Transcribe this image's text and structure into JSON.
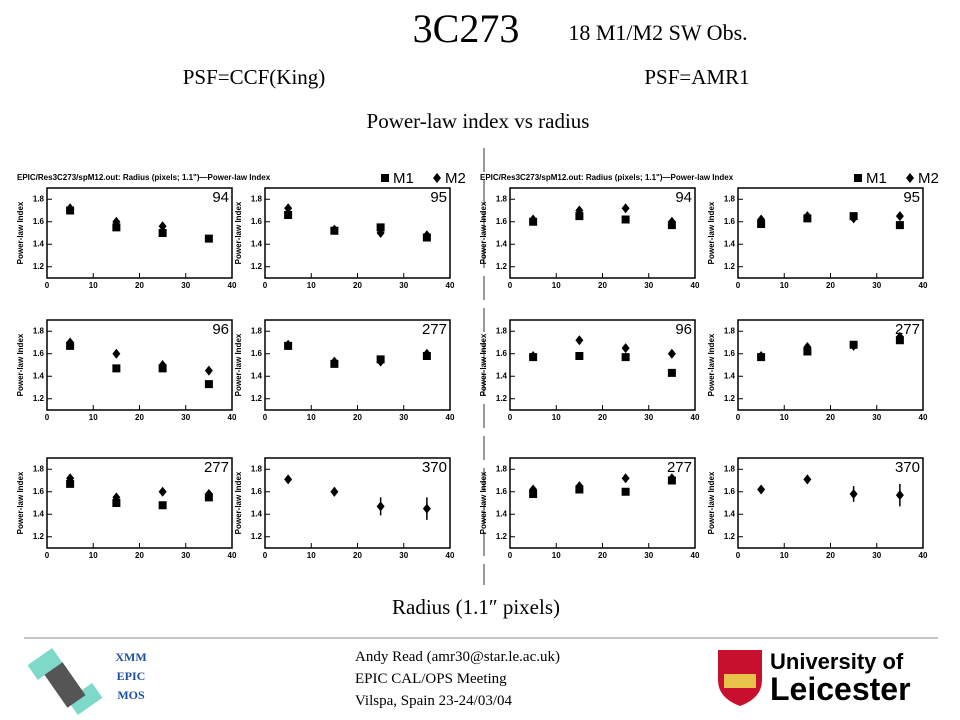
{
  "slide": {
    "title": "3C273",
    "subtitle": "18 M1/M2 SW Obs.",
    "left_label": "PSF=CCF(King)",
    "right_label": "PSF=AMR1",
    "heading": "Power-law index vs radius",
    "x_caption": "Radius (1.1″ pixels)"
  },
  "panel_headers": [
    "EPIC/Res3C273/spM12.out: Radius (pixels; 1.1\")—Power-law Index",
    "EPIC/Res3C273/spM12.out: Radius (pixels; 1.1\")—Power-law Index"
  ],
  "chart_data": [
    {
      "type": "scatter",
      "annotation": "94",
      "ylabel": "Power-law Index",
      "x": [
        5,
        15,
        25,
        35
      ],
      "xlim": [
        0,
        40
      ],
      "xticks": [
        0,
        10,
        20,
        30,
        40
      ],
      "ylim": [
        1.1,
        1.9
      ],
      "yticks": [
        1.2,
        1.4,
        1.6,
        1.8
      ],
      "series": [
        {
          "name": "M1",
          "marker": "square",
          "color": "#000000",
          "values": [
            1.7,
            1.55,
            1.5,
            1.45
          ]
        },
        {
          "name": "M2",
          "marker": "diamond",
          "color": "#000000",
          "values": [
            1.72,
            1.6,
            1.56,
            null
          ]
        }
      ]
    },
    {
      "type": "scatter",
      "annotation": "95",
      "ylabel": "Power-law Index",
      "legend": true,
      "x": [
        5,
        15,
        25,
        35
      ],
      "xlim": [
        0,
        40
      ],
      "xticks": [
        0,
        10,
        20,
        30,
        40
      ],
      "ylim": [
        1.1,
        1.9
      ],
      "yticks": [
        1.2,
        1.4,
        1.6,
        1.8
      ],
      "series": [
        {
          "name": "M1",
          "marker": "square",
          "color": "#000000",
          "values": [
            1.66,
            1.52,
            1.55,
            1.46
          ]
        },
        {
          "name": "M2",
          "marker": "diamond",
          "color": "#000000",
          "values": [
            1.72,
            1.53,
            1.5,
            1.48
          ]
        }
      ]
    },
    {
      "type": "scatter",
      "annotation": "96",
      "ylabel": "Power-law Index",
      "x": [
        5,
        15,
        25,
        35
      ],
      "xlim": [
        0,
        40
      ],
      "xticks": [
        0,
        10,
        20,
        30,
        40
      ],
      "ylim": [
        1.1,
        1.9
      ],
      "yticks": [
        1.2,
        1.4,
        1.6,
        1.8
      ],
      "series": [
        {
          "name": "M1",
          "marker": "square",
          "color": "#000000",
          "values": [
            1.67,
            1.47,
            1.47,
            1.33
          ]
        },
        {
          "name": "M2",
          "marker": "diamond",
          "color": "#000000",
          "values": [
            1.7,
            1.6,
            1.5,
            1.45
          ]
        }
      ]
    },
    {
      "type": "scatter",
      "annotation": "277",
      "ylabel": "Power-law Index",
      "x": [
        5,
        15,
        25,
        35
      ],
      "xlim": [
        0,
        40
      ],
      "xticks": [
        0,
        10,
        20,
        30,
        40
      ],
      "ylim": [
        1.1,
        1.9
      ],
      "yticks": [
        1.2,
        1.4,
        1.6,
        1.8
      ],
      "series": [
        {
          "name": "M1",
          "marker": "square",
          "color": "#000000",
          "values": [
            1.67,
            1.51,
            1.55,
            1.58
          ]
        },
        {
          "name": "M2",
          "marker": "diamond",
          "color": "#000000",
          "values": [
            1.68,
            1.53,
            1.53,
            1.6
          ]
        }
      ]
    },
    {
      "type": "scatter",
      "annotation": "277",
      "ylabel": "Power-law Index",
      "x": [
        5,
        15,
        25,
        35
      ],
      "xlim": [
        0,
        40
      ],
      "xticks": [
        0,
        10,
        20,
        30,
        40
      ],
      "ylim": [
        1.1,
        1.9
      ],
      "yticks": [
        1.2,
        1.4,
        1.6,
        1.8
      ],
      "series": [
        {
          "name": "M1",
          "marker": "square",
          "color": "#000000",
          "values": [
            1.67,
            1.5,
            1.48,
            1.55
          ]
        },
        {
          "name": "M2",
          "marker": "diamond",
          "color": "#000000",
          "values": [
            1.72,
            1.55,
            1.6,
            1.58
          ]
        }
      ]
    },
    {
      "type": "scatter",
      "annotation": "370",
      "ylabel": "Power-law Index",
      "x": [
        5,
        15,
        25,
        35
      ],
      "xlim": [
        0,
        40
      ],
      "xticks": [
        0,
        10,
        20,
        30,
        40
      ],
      "ylim": [
        1.1,
        1.9
      ],
      "yticks": [
        1.2,
        1.4,
        1.6,
        1.8
      ],
      "series": [
        {
          "name": "M2",
          "marker": "diamond",
          "color": "#000000",
          "values": [
            1.71,
            1.6,
            1.47,
            1.45
          ],
          "errors": [
            0.02,
            0.04,
            0.08,
            0.1
          ]
        }
      ]
    },
    {
      "type": "scatter",
      "annotation": "94",
      "ylabel": "Power-law Index",
      "x": [
        5,
        15,
        25,
        35
      ],
      "xlim": [
        0,
        40
      ],
      "xticks": [
        0,
        10,
        20,
        30,
        40
      ],
      "ylim": [
        1.1,
        1.9
      ],
      "yticks": [
        1.2,
        1.4,
        1.6,
        1.8
      ],
      "series": [
        {
          "name": "M1",
          "marker": "square",
          "color": "#000000",
          "values": [
            1.6,
            1.65,
            1.62,
            1.57
          ]
        },
        {
          "name": "M2",
          "marker": "diamond",
          "color": "#000000",
          "values": [
            1.62,
            1.7,
            1.72,
            1.6
          ]
        }
      ]
    },
    {
      "type": "scatter",
      "annotation": "95",
      "ylabel": "Power-law Index",
      "legend": true,
      "x": [
        5,
        15,
        25,
        35
      ],
      "xlim": [
        0,
        40
      ],
      "xticks": [
        0,
        10,
        20,
        30,
        40
      ],
      "ylim": [
        1.1,
        1.9
      ],
      "yticks": [
        1.2,
        1.4,
        1.6,
        1.8
      ],
      "series": [
        {
          "name": "M1",
          "marker": "square",
          "color": "#000000",
          "values": [
            1.58,
            1.63,
            1.65,
            1.57
          ]
        },
        {
          "name": "M2",
          "marker": "diamond",
          "color": "#000000",
          "values": [
            1.62,
            1.65,
            1.63,
            1.65
          ]
        }
      ]
    },
    {
      "type": "scatter",
      "annotation": "96",
      "ylabel": "Power-law Index",
      "x": [
        5,
        15,
        25,
        35
      ],
      "xlim": [
        0,
        40
      ],
      "xticks": [
        0,
        10,
        20,
        30,
        40
      ],
      "ylim": [
        1.1,
        1.9
      ],
      "yticks": [
        1.2,
        1.4,
        1.6,
        1.8
      ],
      "series": [
        {
          "name": "M1",
          "marker": "square",
          "color": "#000000",
          "values": [
            1.57,
            1.58,
            1.57,
            1.43
          ]
        },
        {
          "name": "M2",
          "marker": "diamond",
          "color": "#000000",
          "values": [
            1.58,
            1.72,
            1.65,
            1.6
          ]
        }
      ]
    },
    {
      "type": "scatter",
      "annotation": "277",
      "ylabel": "Power-law Index",
      "x": [
        5,
        15,
        25,
        35
      ],
      "xlim": [
        0,
        40
      ],
      "xticks": [
        0,
        10,
        20,
        30,
        40
      ],
      "ylim": [
        1.1,
        1.9
      ],
      "yticks": [
        1.2,
        1.4,
        1.6,
        1.8
      ],
      "series": [
        {
          "name": "M1",
          "marker": "square",
          "color": "#000000",
          "values": [
            1.57,
            1.62,
            1.68,
            1.72
          ]
        },
        {
          "name": "M2",
          "marker": "diamond",
          "color": "#000000",
          "values": [
            1.58,
            1.66,
            1.67,
            1.75
          ]
        }
      ]
    },
    {
      "type": "scatter",
      "annotation": "277",
      "ylabel": "Power-law Index",
      "x": [
        5,
        15,
        25,
        35
      ],
      "xlim": [
        0,
        40
      ],
      "xticks": [
        0,
        10,
        20,
        30,
        40
      ],
      "ylim": [
        1.1,
        1.9
      ],
      "yticks": [
        1.2,
        1.4,
        1.6,
        1.8
      ],
      "series": [
        {
          "name": "M1",
          "marker": "square",
          "color": "#000000",
          "values": [
            1.58,
            1.62,
            1.6,
            1.7
          ]
        },
        {
          "name": "M2",
          "marker": "diamond",
          "color": "#000000",
          "values": [
            1.62,
            1.65,
            1.72,
            1.72
          ]
        }
      ]
    },
    {
      "type": "scatter",
      "annotation": "370",
      "ylabel": "Power-law Index",
      "x": [
        5,
        15,
        25,
        35
      ],
      "xlim": [
        0,
        40
      ],
      "xticks": [
        0,
        10,
        20,
        30,
        40
      ],
      "ylim": [
        1.1,
        1.9
      ],
      "yticks": [
        1.2,
        1.4,
        1.6,
        1.8
      ],
      "series": [
        {
          "name": "M2",
          "marker": "diamond",
          "color": "#000000",
          "values": [
            1.62,
            1.71,
            1.58,
            1.57
          ],
          "errors": [
            0.02,
            0.04,
            0.07,
            0.1
          ]
        }
      ]
    }
  ],
  "footer": {
    "mission": [
      "XMM",
      "EPIC",
      "MOS"
    ],
    "author": [
      "Andy Read (amr30@star.le.ac.uk)",
      "EPIC CAL/OPS Meeting",
      "Vilspa, Spain 23-24/03/04"
    ],
    "logo": [
      "University of",
      "Leicester"
    ]
  }
}
